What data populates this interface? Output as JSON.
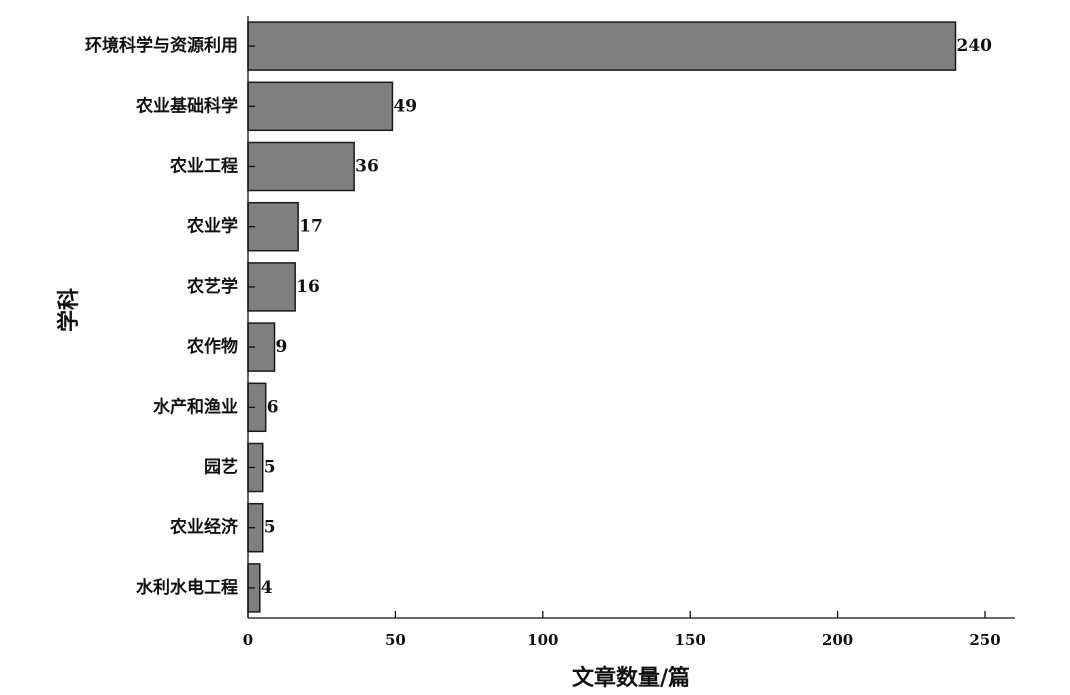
{
  "chart_data": {
    "type": "bar",
    "orientation": "horizontal",
    "categories": [
      "环境科学与资源利用",
      "农业基础科学",
      "农业工程",
      "农业学",
      "农艺学",
      "农作物",
      "水产和渔业",
      "园艺",
      "农业经济",
      "水利水电工程"
    ],
    "values": [
      240,
      49,
      36,
      17,
      16,
      9,
      6,
      5,
      5,
      4
    ],
    "xlabel": "文章数量/篇",
    "ylabel": "学科",
    "xlim": [
      0,
      260
    ],
    "xticks": [
      0,
      50,
      100,
      150,
      200,
      250
    ],
    "xtick_labels": [
      "0",
      "50",
      "100",
      "150",
      "200",
      "250"
    ],
    "data_labels": true,
    "grid": false,
    "bar_color": "#7f7f7f",
    "bar_edge_color": "#1a1a1a"
  }
}
